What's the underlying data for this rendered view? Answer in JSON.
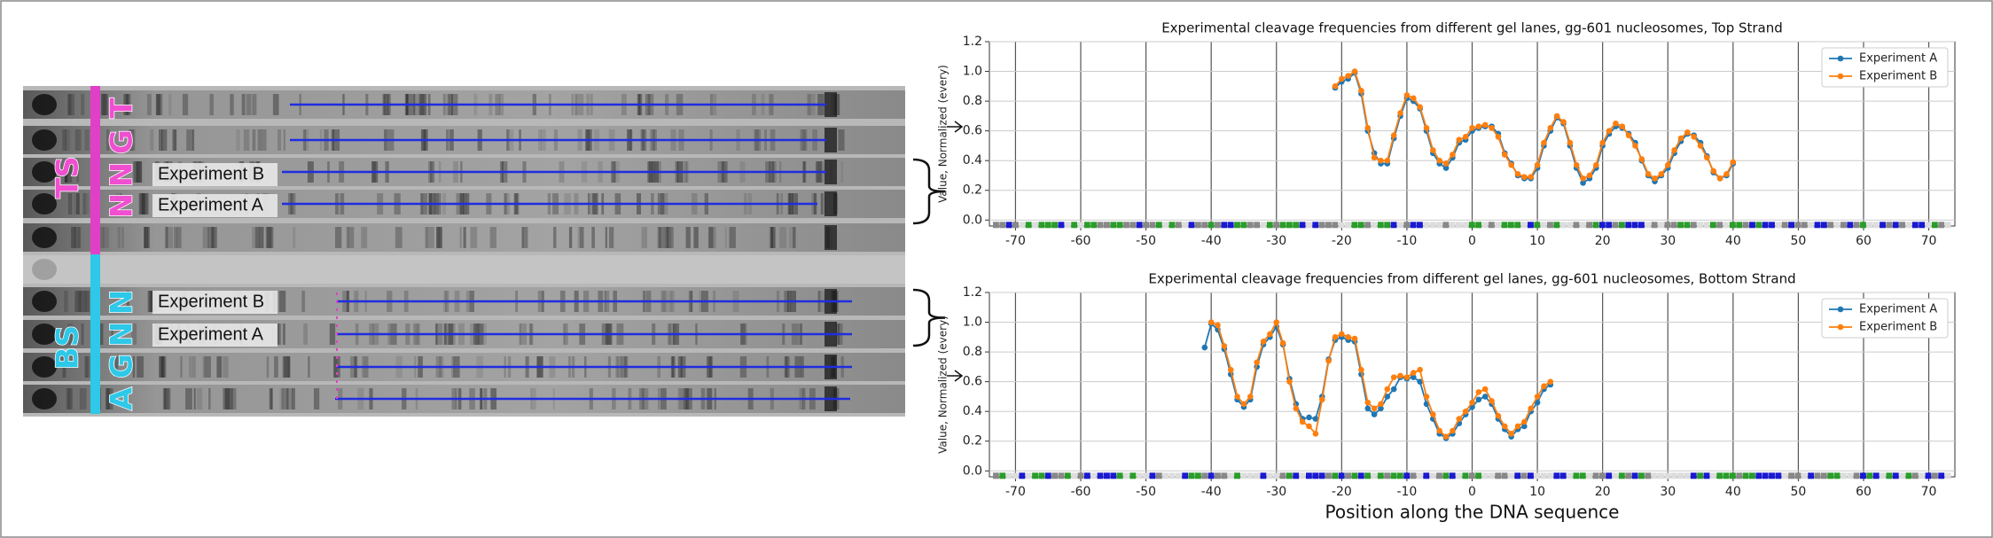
{
  "gel": {
    "strand_labels": [
      "TS",
      "BS"
    ],
    "lane_labels_top": [
      "T",
      "G",
      "N",
      "N"
    ],
    "lane_labels_bottom": [
      "N",
      "N",
      "G",
      "A"
    ],
    "experiment_labels_top": [
      "Experiment B",
      "Experiment A"
    ],
    "experiment_labels_bottom": [
      "Experiment B",
      "Experiment A"
    ]
  },
  "chart_data": [
    {
      "type": "line",
      "title": "Experimental cleavage frequencies from different gel lanes, gg-601 nucleosomes, Top Strand",
      "ylabel": "Value, Normalized (every)",
      "x": [
        -21,
        -20,
        -19,
        -18,
        -17,
        -16,
        -15,
        -14,
        -13,
        -12,
        -11,
        -10,
        -9,
        -8,
        -7,
        -6,
        -5,
        -4,
        -3,
        -2,
        -1,
        0,
        1,
        2,
        3,
        4,
        5,
        6,
        7,
        8,
        9,
        10,
        11,
        12,
        13,
        14,
        15,
        16,
        17,
        18,
        19,
        20,
        21,
        22,
        23,
        24,
        25,
        26,
        27,
        28,
        29,
        30,
        31,
        32,
        33,
        34,
        35,
        36,
        37,
        38,
        39,
        40
      ],
      "series": [
        {
          "name": "Experiment A",
          "color": "#1f77b4",
          "values": [
            0.89,
            0.93,
            0.95,
            0.99,
            0.85,
            0.6,
            0.45,
            0.38,
            0.38,
            0.55,
            0.7,
            0.82,
            0.8,
            0.75,
            0.6,
            0.45,
            0.38,
            0.35,
            0.42,
            0.52,
            0.54,
            0.6,
            0.62,
            0.63,
            0.63,
            0.58,
            0.45,
            0.38,
            0.3,
            0.28,
            0.28,
            0.35,
            0.5,
            0.6,
            0.69,
            0.65,
            0.5,
            0.35,
            0.25,
            0.28,
            0.35,
            0.5,
            0.58,
            0.63,
            0.62,
            0.58,
            0.52,
            0.4,
            0.3,
            0.26,
            0.3,
            0.35,
            0.45,
            0.53,
            0.58,
            0.57,
            0.52,
            0.43,
            0.32,
            0.28,
            0.3,
            0.38
          ]
        },
        {
          "name": "Experiment B",
          "color": "#ff7f0e",
          "values": [
            0.9,
            0.95,
            0.97,
            1.0,
            0.87,
            0.62,
            0.42,
            0.4,
            0.4,
            0.57,
            0.72,
            0.84,
            0.82,
            0.76,
            0.62,
            0.47,
            0.4,
            0.38,
            0.44,
            0.54,
            0.56,
            0.62,
            0.63,
            0.64,
            0.62,
            0.56,
            0.44,
            0.37,
            0.31,
            0.29,
            0.29,
            0.37,
            0.52,
            0.62,
            0.7,
            0.66,
            0.52,
            0.37,
            0.28,
            0.3,
            0.37,
            0.52,
            0.6,
            0.65,
            0.63,
            0.57,
            0.5,
            0.41,
            0.31,
            0.28,
            0.31,
            0.37,
            0.47,
            0.55,
            0.59,
            0.56,
            0.5,
            0.42,
            0.33,
            0.28,
            0.31,
            0.39
          ]
        }
      ],
      "xlim": [
        -74,
        74
      ],
      "xticks": [
        -70,
        -60,
        -50,
        -40,
        -30,
        -20,
        -10,
        0,
        10,
        20,
        30,
        40,
        50,
        60,
        70
      ],
      "ylim": [
        -0.04,
        1.2
      ],
      "yticks": [
        {
          "value": 0,
          "label": "0.0"
        },
        0.2,
        0.4,
        0.6,
        0.8,
        {
          "value": 1,
          "label": "1.0"
        },
        1.2
      ],
      "grid": true,
      "legend": "upper right"
    },
    {
      "type": "line",
      "title": "Experimental cleavage frequencies from different gel lanes, gg-601 nucleosomes, Bottom Strand",
      "ylabel": "Value, Normalized (every)",
      "xlabel": "Position along the DNA sequence",
      "x": [
        -41,
        -40,
        -39,
        -38,
        -37,
        -36,
        -35,
        -34,
        -33,
        -32,
        -31,
        -30,
        -29,
        -28,
        -27,
        -26,
        -25,
        -24,
        -23,
        -22,
        -21,
        -20,
        -19,
        -18,
        -17,
        -16,
        -15,
        -14,
        -13,
        -12,
        -11,
        -10,
        -9,
        -8,
        -7,
        -6,
        -5,
        -4,
        -3,
        -2,
        -1,
        0,
        1,
        2,
        3,
        4,
        5,
        6,
        7,
        8,
        9,
        10,
        11,
        12
      ],
      "series": [
        {
          "name": "Experiment A",
          "color": "#1f77b4",
          "values": [
            0.83,
            0.99,
            0.95,
            0.82,
            0.65,
            0.48,
            0.43,
            0.48,
            0.7,
            0.85,
            0.9,
            0.97,
            0.85,
            0.62,
            0.45,
            0.35,
            0.36,
            0.35,
            0.5,
            0.75,
            0.88,
            0.9,
            0.88,
            0.87,
            0.65,
            0.42,
            0.38,
            0.42,
            0.5,
            0.55,
            0.63,
            0.62,
            0.63,
            0.6,
            0.45,
            0.35,
            0.25,
            0.22,
            0.25,
            0.32,
            0.38,
            0.43,
            0.48,
            0.5,
            0.45,
            0.35,
            0.28,
            0.23,
            0.28,
            0.3,
            0.4,
            0.46,
            0.55,
            0.58
          ]
        },
        {
          "name": "Experiment B",
          "color": "#ff7f0e",
          "values": [
            null,
            1.0,
            0.98,
            0.84,
            0.68,
            0.5,
            0.45,
            0.5,
            0.73,
            0.87,
            0.92,
            1.0,
            0.86,
            0.6,
            0.42,
            0.33,
            0.3,
            0.25,
            0.48,
            0.74,
            0.9,
            0.92,
            0.9,
            0.89,
            0.68,
            0.46,
            0.42,
            0.45,
            0.55,
            0.63,
            0.64,
            0.63,
            0.66,
            0.68,
            0.5,
            0.38,
            0.27,
            0.23,
            0.27,
            0.35,
            0.4,
            0.46,
            0.53,
            0.55,
            0.47,
            0.37,
            0.3,
            0.25,
            0.3,
            0.33,
            0.42,
            0.5,
            0.57,
            0.6
          ]
        }
      ],
      "xlim": [
        -74,
        74
      ],
      "xticks": [
        -70,
        -60,
        -50,
        -40,
        -30,
        -20,
        -10,
        0,
        10,
        20,
        30,
        40,
        50,
        60,
        70
      ],
      "ylim": [
        -0.04,
        1.2
      ],
      "yticks": [
        {
          "value": 0,
          "label": "0.0"
        },
        0.2,
        0.4,
        0.6,
        0.8,
        {
          "value": 1,
          "label": "1.0"
        },
        1.2
      ],
      "grid": true,
      "legend": "upper right"
    }
  ]
}
